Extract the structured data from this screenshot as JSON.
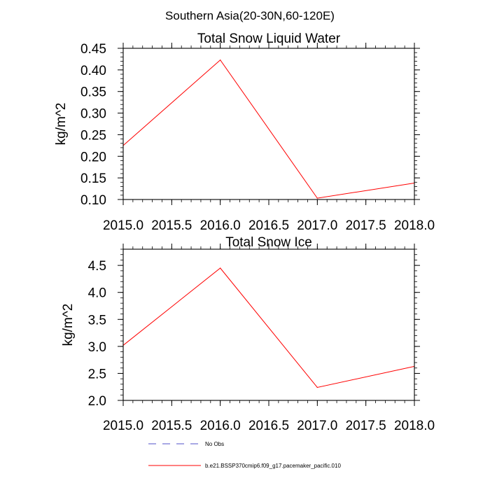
{
  "suptitle": "Southern Asia(20-30N,60-120E)",
  "legend": [
    {
      "label": "No Obs",
      "color": "#5050c8",
      "style": "dashed"
    },
    {
      "label": "b.e21.BSSP370cmip6.f09_g17.pacemaker_pacific.010",
      "color": "#ff0000",
      "style": "solid"
    }
  ],
  "chart_data": [
    {
      "type": "line",
      "title": "Total Snow Liquid Water",
      "xlabel": "",
      "ylabel": "kg/m^2",
      "xlim": [
        2015.0,
        2018.0
      ],
      "ylim": [
        0.1,
        0.45
      ],
      "xticks": [
        "2015.0",
        "2015.5",
        "2016.0",
        "2016.5",
        "2017.0",
        "2017.5",
        "2018.0"
      ],
      "yticks": [
        "0.10",
        "0.15",
        "0.20",
        "0.25",
        "0.30",
        "0.35",
        "0.40",
        "0.45"
      ],
      "series": [
        {
          "name": "b.e21.BSSP370cmip6.f09_g17.pacemaker_pacific.010",
          "color": "#ff0000",
          "x": [
            2015,
            2016,
            2017,
            2018
          ],
          "values": [
            0.225,
            0.423,
            0.103,
            0.138
          ]
        }
      ]
    },
    {
      "type": "line",
      "title": "Total Snow Ice",
      "xlabel": "",
      "ylabel": "kg/m^2",
      "xlim": [
        2015.0,
        2018.0
      ],
      "ylim": [
        2.0,
        4.8
      ],
      "xticks": [
        "2015.0",
        "2015.5",
        "2016.0",
        "2016.5",
        "2017.0",
        "2017.5",
        "2018.0"
      ],
      "yticks": [
        "2.0",
        "2.5",
        "3.0",
        "3.5",
        "4.0",
        "4.5"
      ],
      "series": [
        {
          "name": "b.e21.BSSP370cmip6.f09_g17.pacemaker_pacific.010",
          "color": "#ff0000",
          "x": [
            2015,
            2016,
            2017,
            2018
          ],
          "values": [
            3.02,
            4.45,
            2.24,
            2.63
          ]
        }
      ]
    }
  ]
}
